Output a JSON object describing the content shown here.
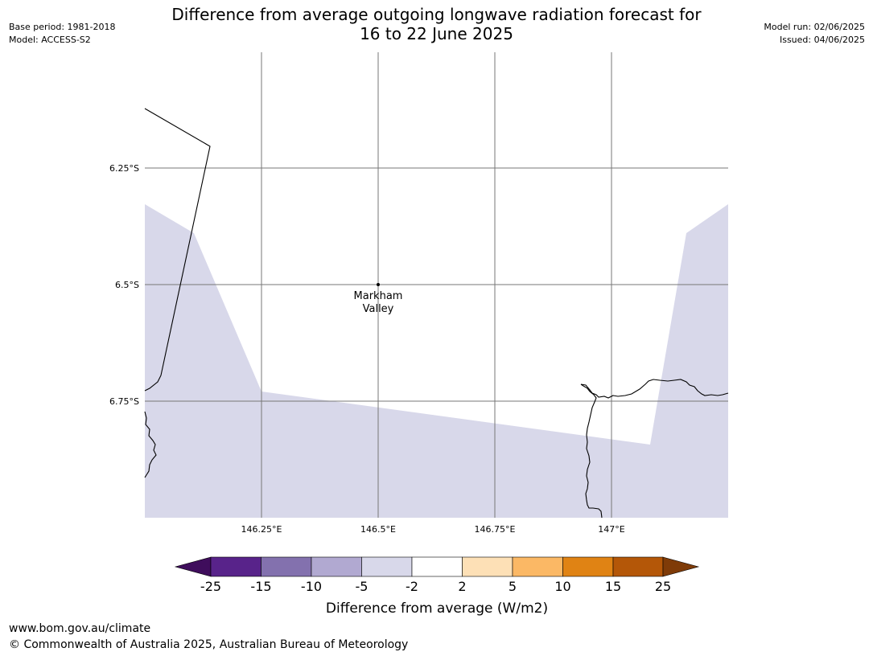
{
  "title": {
    "line1": "Difference from average outgoing longwave radiation forecast for",
    "line2": "16 to 22 June 2025"
  },
  "header_left": {
    "base_period": "Base period: 1981-2018",
    "model": "Model: ACCESS-S2"
  },
  "header_right": {
    "model_run": "Model run: 02/06/2025",
    "issued": "Issued: 04/06/2025"
  },
  "map": {
    "lat_labels": [
      "6.25°S",
      "6.5°S",
      "6.75°S"
    ],
    "lon_labels": [
      "146.25°E",
      "146.5°E",
      "146.75°E",
      "147°E"
    ],
    "place": {
      "name_line1": "Markham",
      "name_line2": "Valley"
    },
    "shading_colors": {
      "light_negative": "#d8d8ea",
      "zero": "#ffffff"
    }
  },
  "colorbar": {
    "ticks": [
      "-25",
      "-15",
      "-10",
      "-5",
      "-2",
      "2",
      "5",
      "10",
      "15",
      "25"
    ],
    "colors": [
      "#3f0d5c",
      "#58238a",
      "#8371ae",
      "#b1a9d1",
      "#d8d8ea",
      "#ffffff",
      "#fde0b6",
      "#fbb865",
      "#e08314",
      "#b45708",
      "#7f3b08"
    ],
    "label": "Difference from average (W/m2)"
  },
  "footer": {
    "url": "www.bom.gov.au/climate",
    "copyright": "© Commonwealth of Australia 2025, Australian Bureau of Meteorology"
  }
}
